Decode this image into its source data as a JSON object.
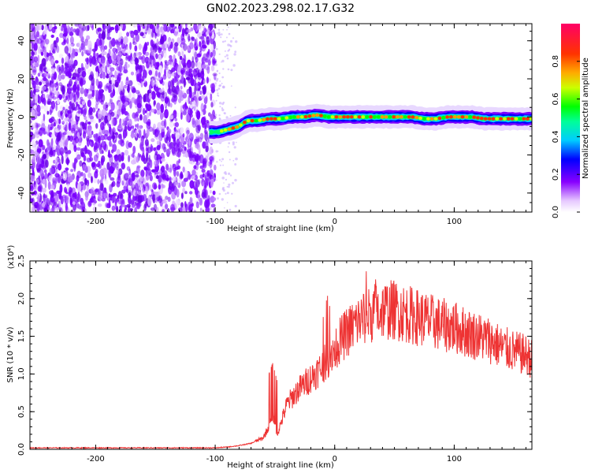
{
  "title": "GN02.2023.298.02.17.G32",
  "chart_data": [
    {
      "type": "heatmap",
      "xlabel": "Height of straight line (km)",
      "ylabel": "Frequency (Hz)",
      "xlim": [
        -255,
        165
      ],
      "ylim": [
        -50,
        49
      ],
      "xticks": [
        -200,
        -100,
        0,
        100
      ],
      "yticks": [
        -40,
        -20,
        0,
        20,
        40
      ],
      "noise_region_x": [
        -255,
        -100
      ],
      "signal_track": {
        "x": [
          -105,
          -98,
          -92,
          -86,
          -80,
          -76,
          -72,
          -65,
          -55,
          -45,
          -35,
          -25,
          -15,
          -5,
          5,
          15,
          25,
          35,
          45,
          55,
          65,
          75,
          85,
          95,
          105,
          115,
          125,
          135,
          145,
          155,
          165
        ],
        "freq_hz": [
          -8,
          -8,
          -7,
          -6,
          -5,
          -3,
          -2,
          -2,
          -1,
          -1,
          0,
          0,
          1,
          0,
          0,
          0,
          0,
          0,
          0,
          0,
          0,
          -1,
          -1,
          0,
          0,
          0,
          -1,
          -1,
          -1,
          -1,
          -1
        ]
      },
      "colorbar": {
        "label": "Normalized spectral amplitude",
        "range": [
          0,
          1
        ],
        "ticks": [
          "0.0",
          "0.2",
          "0.4",
          "0.6",
          "0.8"
        ]
      }
    },
    {
      "type": "line",
      "xlabel": "Height of straight line (km)",
      "ylabel": "SNR (10 * v/v)",
      "y_multiplier": "(x10⁴)",
      "xlim": [
        -255,
        165
      ],
      "ylim": [
        0,
        2.5
      ],
      "xticks": [
        -200,
        -100,
        0,
        100
      ],
      "yticks": [
        "0.0",
        "0.5",
        "1.0",
        "1.5",
        "2.0",
        "2.5"
      ],
      "line_color": "#ee3333",
      "envelope": {
        "x": [
          -255,
          -150,
          -100,
          -90,
          -80,
          -70,
          -60,
          -55,
          -52,
          -48,
          -45,
          -40,
          -30,
          -20,
          -10,
          0,
          10,
          20,
          30,
          40,
          50,
          60,
          70,
          80,
          90,
          100,
          110,
          120,
          130,
          140,
          150,
          160,
          165
        ],
        "y": [
          0.02,
          0.02,
          0.02,
          0.03,
          0.05,
          0.08,
          0.15,
          0.3,
          0.45,
          0.2,
          0.35,
          0.6,
          0.8,
          0.95,
          1.1,
          1.35,
          1.55,
          1.7,
          1.8,
          1.85,
          1.85,
          1.8,
          1.75,
          1.7,
          1.65,
          1.62,
          1.55,
          1.5,
          1.45,
          1.35,
          1.3,
          1.25,
          1.2
        ]
      }
    }
  ]
}
